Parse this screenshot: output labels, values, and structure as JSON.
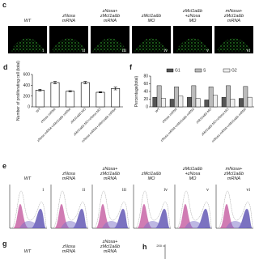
{
  "panels": {
    "c": {
      "label": "c",
      "headers": [
        [
          "WT"
        ],
        [
          "zNosa",
          "mRNA"
        ],
        [
          "zNosa+",
          "zMcl1a&b",
          "mRNA"
        ],
        [
          "zMcl1a&b",
          "MO"
        ],
        [
          "zMcl1a&b",
          "+zNosa",
          "MO"
        ],
        [
          "mNosa+",
          "zMcl1a&b",
          "mRNA"
        ]
      ],
      "numerals": [
        "i",
        "ii",
        "iii",
        "iv",
        "v",
        "vi"
      ]
    },
    "d": {
      "label": "d"
    },
    "f": {
      "label": "f"
    },
    "e": {
      "label": "e",
      "headers": [
        [
          "WT"
        ],
        [
          "zNosa",
          "mRNA"
        ],
        [
          "zNosa+",
          "zMcl1a&b",
          "mRNA"
        ],
        [
          "zMcl1a&b",
          "MO"
        ],
        [
          "zMcl1a&b",
          "+zNosa",
          "MO"
        ],
        [
          "mNosa+",
          "zMcl1a&b",
          "mRNA"
        ]
      ],
      "numerals": [
        "i",
        "ii",
        "iii",
        "iv",
        "v",
        "vi"
      ]
    },
    "g": {
      "label": "g",
      "headers": [
        [
          "WT"
        ],
        [
          "zNosa",
          "mRNA"
        ],
        [
          "zNosa+",
          "zMcl1a&b",
          "mRNA"
        ]
      ]
    },
    "h": {
      "label": "h",
      "yticks": [
        200
      ]
    }
  },
  "chart_data": [
    {
      "type": "bar",
      "ylabel": "Number of proliferating cell (total)",
      "categories": [
        "WT",
        "zNosa mRNA",
        "zNosa mRNA+zMcl1a&b mRNA",
        "zMcl1a&b MO",
        "zMcl1a&b MO+zNosa MO",
        "mNosa mRNA+zMcl1a&b mRNA"
      ],
      "values": [
        310,
        450,
        290,
        450,
        270,
        340
      ],
      "errors": [
        15,
        20,
        10,
        20,
        10,
        25
      ],
      "color": "#ffffff",
      "ylim": [
        0,
        600
      ],
      "yticks": [
        0,
        200,
        400,
        600
      ]
    },
    {
      "type": "bar",
      "ylabel": "Percentage(total)",
      "categories": [
        "WT",
        "zNosa mRNA",
        "zNosa mRNA+zMcl1a&b mRNA",
        "zMcl1a&b MO",
        "zMcl1a&b MO+zNosa MO",
        "mNosa mRNA+zMcl1a&b mRNA"
      ],
      "series": [
        {
          "name": "G1",
          "color": "#555555",
          "values": [
            25,
            20,
            25,
            18,
            25,
            22
          ]
        },
        {
          "name": "S",
          "color": "#bbbbbb",
          "values": [
            55,
            52,
            55,
            52,
            55,
            53
          ]
        },
        {
          "name": "G2",
          "color": "#eeeeee",
          "values": [
            22,
            28,
            22,
            30,
            20,
            25
          ]
        }
      ],
      "ylim": [
        0,
        80
      ],
      "yticks": [
        0,
        20,
        40,
        60,
        80
      ]
    }
  ]
}
